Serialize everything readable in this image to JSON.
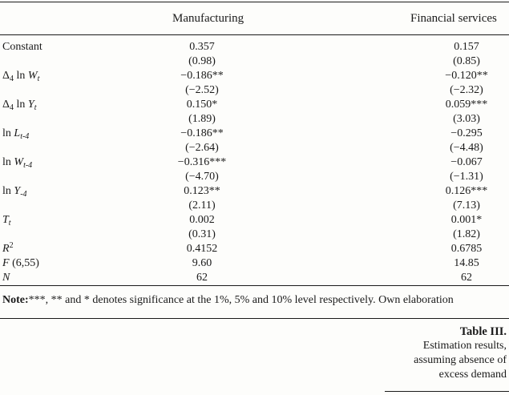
{
  "table": {
    "headers": [
      "Manufacturing",
      "Financial services"
    ],
    "rows": [
      {
        "label_parts": [
          "Constant"
        ],
        "mfg": "0.357",
        "fin": "0.157"
      },
      {
        "label_parts": [
          ""
        ],
        "mfg": "(0.98)",
        "fin": "(0.85)"
      },
      {
        "label_parts": [
          "Δ",
          "4",
          " ln ",
          "W",
          "t"
        ],
        "mfg": "−0.186**",
        "fin": "−0.120**"
      },
      {
        "label_parts": [
          ""
        ],
        "mfg": "(−2.52)",
        "fin": "(−2.32)"
      },
      {
        "label_parts": [
          "Δ",
          "4",
          " ln ",
          "Y",
          "t"
        ],
        "mfg": "0.150*",
        "fin": "0.059***"
      },
      {
        "label_parts": [
          ""
        ],
        "mfg": "(1.89)",
        "fin": "(3.03)"
      },
      {
        "label_parts": [
          "ln ",
          "L",
          "t-4"
        ],
        "mfg": "−0.186**",
        "fin": "−0.295"
      },
      {
        "label_parts": [
          ""
        ],
        "mfg": "(−2.64)",
        "fin": "(−4.48)"
      },
      {
        "label_parts": [
          "ln ",
          "W",
          "t-4"
        ],
        "mfg": "−0.316***",
        "fin": "−0.067"
      },
      {
        "label_parts": [
          ""
        ],
        "mfg": "(−4.70)",
        "fin": "(−1.31)"
      },
      {
        "label_parts": [
          "ln ",
          "Y",
          "-4"
        ],
        "mfg": "0.123**",
        "fin": "0.126***"
      },
      {
        "label_parts": [
          ""
        ],
        "mfg": "(2.11)",
        "fin": "(7.13)"
      },
      {
        "label_parts": [
          "T",
          "t"
        ],
        "mfg": "0.002",
        "fin": "0.001*"
      },
      {
        "label_parts": [
          ""
        ],
        "mfg": "(0.31)",
        "fin": "(1.82)"
      },
      {
        "label_parts": [
          "R",
          "2"
        ],
        "mfg": "0.4152",
        "fin": "0.6785"
      },
      {
        "label_parts": [
          "F",
          " (6,55)"
        ],
        "mfg": "9.60",
        "fin": "14.85"
      },
      {
        "label_parts": [
          "N"
        ],
        "mfg": "62",
        "fin": "62"
      }
    ]
  },
  "note": {
    "prefix": "Note:",
    "text": "***, ** and * denotes significance at the 1%, 5% and 10% level respectively. Own elaboration"
  },
  "caption": {
    "title": "Table III.",
    "description_lines": [
      "Estimation results,",
      "assuming absence of",
      "excess demand"
    ]
  }
}
